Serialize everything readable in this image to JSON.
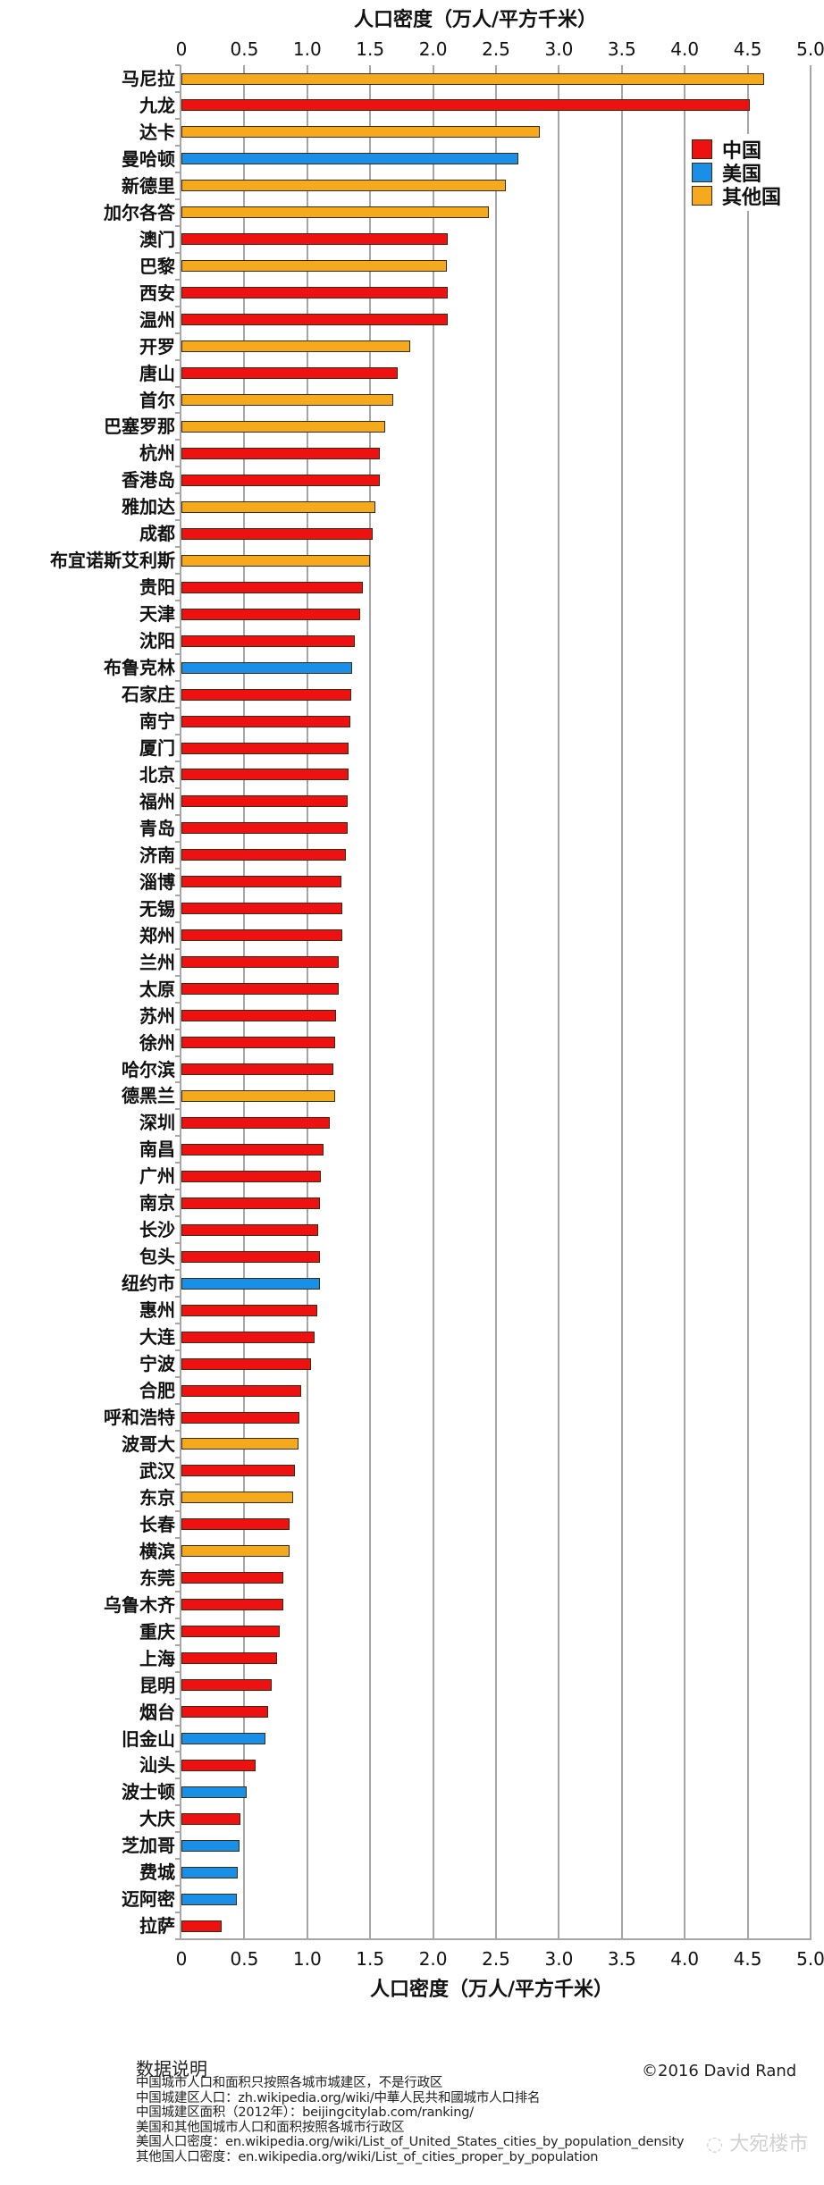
{
  "colors": {
    "中国": "#ee1111",
    "美国": "#1a8fe8",
    "其他国": "#f5a91c"
  },
  "legend": {
    "items": [
      {
        "label": "中国",
        "key": "中国"
      },
      {
        "label": "美国",
        "key": "美国"
      },
      {
        "label": "其他国",
        "key": "其他国"
      }
    ]
  },
  "chart_data": {
    "type": "bar",
    "orientation": "horizontal",
    "title": "人口密度（万人/平方千米）",
    "xlabel": "人口密度（万人/平方千米）",
    "ylabel": "",
    "xlim": [
      0,
      5.0
    ],
    "xticks": [
      "0",
      "0.5",
      "1.0",
      "1.5",
      "2.0",
      "2.5",
      "3.0",
      "3.5",
      "4.0",
      "4.5",
      "5.0"
    ],
    "grid": true,
    "legend_position": "upper right",
    "legend": [
      "中国",
      "美国",
      "其他国"
    ],
    "categories": [
      "马尼拉",
      "九龙",
      "达卡",
      "曼哈顿",
      "新德里",
      "加尔各答",
      "澳门",
      "巴黎",
      "西安",
      "温州",
      "开罗",
      "唐山",
      "首尔",
      "巴塞罗那",
      "杭州",
      "香港岛",
      "雅加达",
      "成都",
      "布宜诺斯艾利斯",
      "贵阳",
      "天津",
      "沈阳",
      "布鲁克林",
      "石家庄",
      "南宁",
      "厦门",
      "北京",
      "福州",
      "青岛",
      "济南",
      "淄博",
      "无锡",
      "郑州",
      "兰州",
      "太原",
      "苏州",
      "徐州",
      "哈尔滨",
      "德黑兰",
      "深圳",
      "南昌",
      "广州",
      "南京",
      "长沙",
      "包头",
      "纽约市",
      "惠州",
      "大连",
      "宁波",
      "合肥",
      "呼和浩特",
      "波哥大",
      "武汉",
      "东京",
      "长春",
      "横滨",
      "东莞",
      "乌鲁木齐",
      "重庆",
      "上海",
      "昆明",
      "烟台",
      "旧金山",
      "汕头",
      "波士顿",
      "大庆",
      "芝加哥",
      "费城",
      "迈阿密",
      "拉萨"
    ],
    "values": [
      4.63,
      4.52,
      2.85,
      2.68,
      2.58,
      2.44,
      2.12,
      2.11,
      2.12,
      2.12,
      1.82,
      1.72,
      1.68,
      1.62,
      1.58,
      1.58,
      1.54,
      1.52,
      1.5,
      1.44,
      1.42,
      1.38,
      1.36,
      1.35,
      1.34,
      1.33,
      1.33,
      1.32,
      1.32,
      1.31,
      1.27,
      1.28,
      1.28,
      1.25,
      1.25,
      1.23,
      1.22,
      1.21,
      1.22,
      1.18,
      1.13,
      1.11,
      1.1,
      1.09,
      1.1,
      1.1,
      1.08,
      1.06,
      1.03,
      0.95,
      0.94,
      0.93,
      0.9,
      0.89,
      0.86,
      0.86,
      0.81,
      0.81,
      0.78,
      0.76,
      0.72,
      0.69,
      0.67,
      0.59,
      0.52,
      0.47,
      0.46,
      0.45,
      0.44,
      0.32
    ],
    "groups": [
      "其他国",
      "中国",
      "其他国",
      "美国",
      "其他国",
      "其他国",
      "中国",
      "其他国",
      "中国",
      "中国",
      "其他国",
      "中国",
      "其他国",
      "其他国",
      "中国",
      "中国",
      "其他国",
      "中国",
      "其他国",
      "中国",
      "中国",
      "中国",
      "美国",
      "中国",
      "中国",
      "中国",
      "中国",
      "中国",
      "中国",
      "中国",
      "中国",
      "中国",
      "中国",
      "中国",
      "中国",
      "中国",
      "中国",
      "中国",
      "其他国",
      "中国",
      "中国",
      "中国",
      "中国",
      "中国",
      "中国",
      "美国",
      "中国",
      "中国",
      "中国",
      "中国",
      "中国",
      "其他国",
      "中国",
      "其他国",
      "中国",
      "其他国",
      "中国",
      "中国",
      "中国",
      "中国",
      "中国",
      "中国",
      "美国",
      "中国",
      "美国",
      "中国",
      "美国",
      "美国",
      "美国",
      "中国"
    ]
  },
  "footer": {
    "heading": "数据说明",
    "lines": [
      "中国城市人口和面积只按照各城市城建区，不是行政区",
      "中国城建区人口：zh.wikipedia.org/wiki/中華人民共和國城市人口排名",
      "中国城建区面积（2012年）：beijingcitylab.com/ranking/",
      "美国和其他国城市人口和面积按照各城市行政区",
      "美国人口密度：en.wikipedia.org/wiki/List_of_United_States_cities_by_population_density",
      "其他国人口密度：en.wikipedia.org/wiki/List_of_cities_proper_by_population"
    ],
    "copyright": "©2016 David Rand",
    "watermark": "大宛楼市"
  }
}
